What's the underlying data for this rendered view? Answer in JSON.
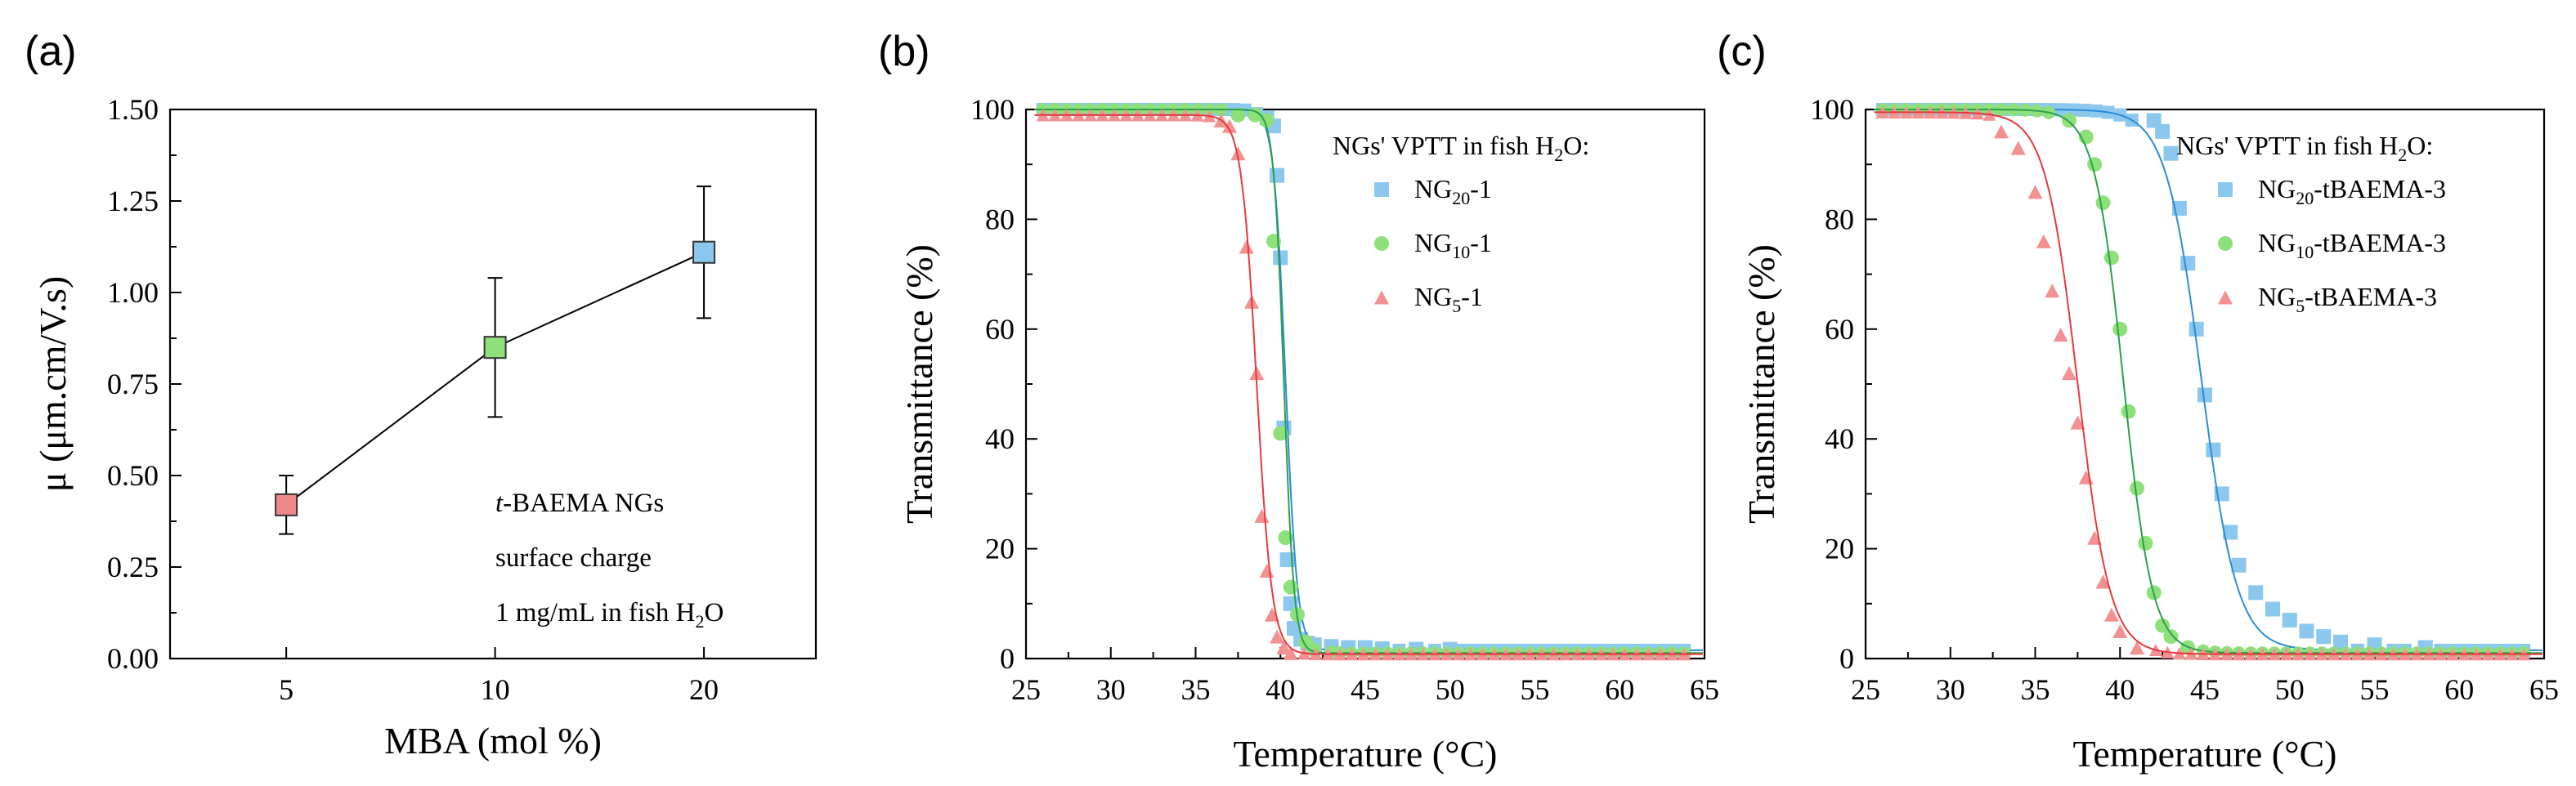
{
  "figure": {
    "panels": {
      "a": {
        "label": "(a)"
      },
      "b": {
        "label": "(b)"
      },
      "c": {
        "label": "(c)"
      }
    },
    "annotation_a": {
      "line1_italic": "t",
      "line1_rest": "-BAEMA NGs",
      "line2": "surface charge",
      "line3_pre": "1 mg/mL in fish H",
      "line3_sub": "2",
      "line3_post": "O"
    },
    "legend_title": {
      "pre": "NGs' VPTT in fish H",
      "sub": "2",
      "post": "O:"
    }
  },
  "chart_data": [
    {
      "id": "a",
      "type": "line",
      "xlabel": "MBA (mol %)",
      "ylabel": "μ (μm.cm/V.s)",
      "x_scale": "log",
      "xlim": [
        3.4,
        29
      ],
      "ylim": [
        0.0,
        1.5
      ],
      "xticks": [
        5,
        10,
        20
      ],
      "yticks": [
        "0.00",
        "0.25",
        "0.50",
        "0.75",
        "1.00",
        "1.25",
        "1.50"
      ],
      "points": [
        {
          "x": 5,
          "y": 0.42,
          "err": 0.08,
          "color": "#f08a8a"
        },
        {
          "x": 10,
          "y": 0.85,
          "err": 0.19,
          "color": "#8ee07a"
        },
        {
          "x": 20,
          "y": 1.11,
          "err": 0.18,
          "color": "#8cc8ee"
        }
      ]
    },
    {
      "id": "b",
      "type": "scatter",
      "xlabel": "Temperature (°C)",
      "ylabel": "Transmittance (%)",
      "xlim": [
        25,
        65
      ],
      "ylim": [
        0,
        100
      ],
      "xticks": [
        "25",
        "30",
        "35",
        "40",
        "45",
        "50",
        "55",
        "60",
        "65"
      ],
      "yticks": [
        "0",
        "20",
        "40",
        "60",
        "80",
        "100"
      ],
      "series": [
        {
          "name": "NG20-1",
          "label_pre": "NG",
          "label_sub": "20",
          "label_post": "-1",
          "marker": "square",
          "color": "#8cc8ee",
          "line_color": "#2a8cd6",
          "fit": {
            "top": 100,
            "bottom": 1.5,
            "x0": 40.3,
            "dx": 0.35
          },
          "x": [
            39.2,
            39.6,
            39.8,
            40.0,
            40.2,
            40.4,
            40.6,
            40.8,
            41.2,
            41.6,
            42.0,
            43.0,
            44.0,
            45.0,
            46.0,
            48.0,
            50.0
          ],
          "y": [
            98.5,
            97.0,
            88.0,
            73.0,
            42.0,
            18.0,
            10.0,
            5.5,
            3.5,
            2.8,
            2.5,
            2.2,
            2.0,
            2.0,
            1.8,
            1.7,
            1.7
          ]
        },
        {
          "name": "NG10-1",
          "label_pre": "NG",
          "label_sub": "10",
          "label_post": "-1",
          "marker": "circle",
          "color": "#8ee07a",
          "line_color": "#2aa04a",
          "fit": {
            "top": 100,
            "bottom": 1.0,
            "x0": 40.2,
            "dx": 0.3
          },
          "x": [
            37.5,
            38.5,
            39.2,
            39.6,
            40.0,
            40.3,
            40.6,
            41.0,
            41.5,
            42.0,
            43.0
          ],
          "y": [
            99.0,
            99.0,
            98.0,
            76.0,
            41.0,
            22.0,
            13.0,
            8.0,
            3.0,
            1.5,
            1.0
          ]
        },
        {
          "name": "NG5-1",
          "label_pre": "NG",
          "label_sub": "5",
          "label_post": "-1",
          "marker": "triangle",
          "color": "#f39191",
          "line_color": "#e8383d",
          "fit": {
            "top": 99,
            "bottom": 0.8,
            "x0": 38.6,
            "dx": 0.45
          },
          "x": [
            36.5,
            37.0,
            37.5,
            38.0,
            38.3,
            38.6,
            38.9,
            39.2,
            39.5,
            39.8,
            40.2,
            40.6
          ],
          "y": [
            98.0,
            97.0,
            92.0,
            75.0,
            65.0,
            52.0,
            26.0,
            16.0,
            8.0,
            4.0,
            2.0,
            1.0
          ]
        }
      ],
      "legend": [
        "NG20-1",
        "NG10-1",
        "NG5-1"
      ]
    },
    {
      "id": "c",
      "type": "scatter",
      "xlabel": "Temperature (°C)",
      "ylabel": "Transmittance (%)",
      "xlim": [
        25,
        65
      ],
      "ylim": [
        0,
        100
      ],
      "xticks": [
        "25",
        "30",
        "35",
        "40",
        "45",
        "50",
        "55",
        "60",
        "65"
      ],
      "yticks": [
        "0",
        "20",
        "40",
        "60",
        "80",
        "100"
      ],
      "series": [
        {
          "name": "NG20-tBAEMA-3",
          "label_pre": "NG",
          "label_sub": "20",
          "label_post": "-tBAEMA-3",
          "marker": "square",
          "color": "#8cc8ee",
          "line_color": "#2a8cd6",
          "fit": {
            "top": 100,
            "bottom": 1.5,
            "x0": 44.8,
            "dx": 1.05
          },
          "x": [
            42.0,
            42.5,
            43.0,
            43.5,
            44.0,
            44.5,
            45.0,
            45.5,
            46.0,
            46.5,
            47.0,
            48.0,
            49.0,
            50.0,
            51.0,
            52.0,
            53.0,
            55.0,
            58.0
          ],
          "y": [
            98.0,
            96.0,
            92.0,
            82.0,
            72.0,
            60.0,
            48.0,
            38.0,
            30.0,
            23.0,
            17.0,
            12.0,
            9.0,
            7.0,
            5.0,
            4.0,
            3.0,
            2.5,
            2.0
          ]
        },
        {
          "name": "NG10-tBAEMA-3",
          "label_pre": "NG",
          "label_sub": "10",
          "label_post": "-tBAEMA-3",
          "marker": "circle",
          "color": "#8ee07a",
          "line_color": "#2aa04a",
          "fit": {
            "top": 100,
            "bottom": 1.0,
            "x0": 40.2,
            "dx": 0.85
          },
          "x": [
            37.0,
            38.0,
            38.5,
            39.0,
            39.5,
            40.0,
            40.5,
            41.0,
            41.5,
            42.0,
            42.5,
            43.0,
            44.0
          ],
          "y": [
            98.0,
            95.0,
            90.0,
            83.0,
            73.0,
            60.0,
            45.0,
            31.0,
            21.0,
            12.0,
            6.0,
            4.0,
            2.0
          ]
        },
        {
          "name": "NG5-tBAEMA-3",
          "label_pre": "NG",
          "label_sub": "5",
          "label_post": "-tBAEMA-3",
          "marker": "triangle",
          "color": "#f39191",
          "line_color": "#e8383d",
          "fit": {
            "top": 99.5,
            "bottom": 0.8,
            "x0": 37.5,
            "dx": 0.95
          },
          "x": [
            33.0,
            34.0,
            35.0,
            35.5,
            36.0,
            36.5,
            37.0,
            37.5,
            38.0,
            38.5,
            39.0,
            39.5,
            40.0,
            41.0
          ],
          "y": [
            96.0,
            93.0,
            85.0,
            76.0,
            67.0,
            59.0,
            52.0,
            43.0,
            33.0,
            22.0,
            14.0,
            8.0,
            5.0,
            2.0
          ]
        }
      ],
      "legend": [
        "NG20-tBAEMA-3",
        "NG10-tBAEMA-3",
        "NG5-tBAEMA-3"
      ]
    }
  ]
}
